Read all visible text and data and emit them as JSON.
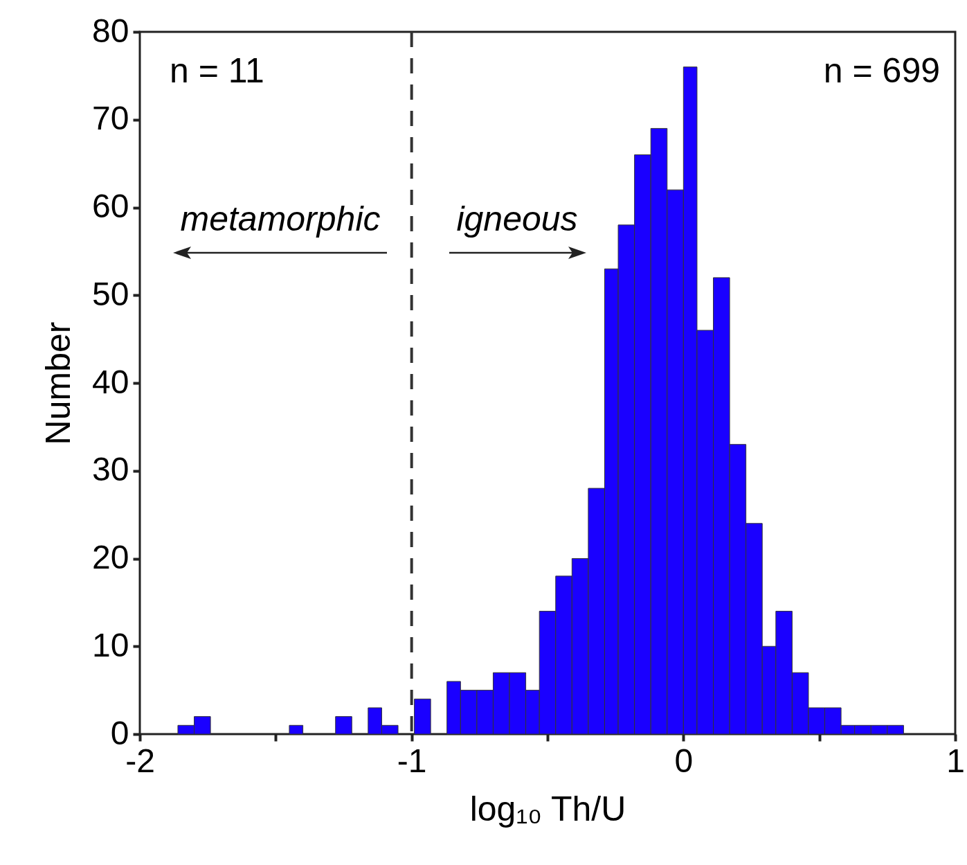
{
  "chart_data": {
    "type": "histogram",
    "xlabel": "log₁₀ Th/U",
    "ylabel": "Number",
    "bins": [
      -1.86,
      -1.8,
      -1.74,
      -1.45,
      -1.4,
      -1.28,
      -1.22,
      -1.16,
      -1.11,
      -1.05,
      -0.99,
      -0.93,
      -0.87,
      -0.82,
      -0.76,
      -0.7,
      -0.64,
      -0.58,
      -0.53,
      -0.47,
      -0.41,
      -0.35,
      -0.29,
      -0.24,
      -0.18,
      -0.12,
      -0.06,
      0,
      0.05,
      0.11,
      0.17,
      0.23,
      0.29,
      0.34,
      0.4,
      0.46,
      0.52,
      0.58,
      0.63,
      0.69,
      0.75,
      0.81
    ],
    "values": [
      1,
      2,
      0,
      1,
      0,
      2,
      0,
      3,
      1,
      0,
      4,
      0,
      6,
      5,
      5,
      7,
      7,
      5,
      14,
      18,
      20,
      28,
      53,
      58,
      66,
      69,
      62,
      76,
      46,
      52,
      33,
      24,
      10,
      14,
      7,
      3,
      3,
      1,
      1,
      1,
      1
    ],
    "color": "#1a00ff",
    "xlim": [
      -2,
      1
    ],
    "xticks": [
      -2,
      {
        "value": -1.5,
        "label": null
      },
      -1,
      {
        "value": -0.5,
        "label": null
      },
      0,
      {
        "value": 0.5,
        "label": null
      },
      1
    ],
    "ylim": [
      0,
      80
    ],
    "yticks": [
      0,
      10,
      20,
      30,
      40,
      50,
      60,
      70,
      80
    ],
    "ref_lines": [
      {
        "axis": "x",
        "value": -1,
        "line_style": "dashed",
        "color": "#333333"
      }
    ],
    "annotations": [
      "n = 11",
      "n = 699",
      "metamorphic",
      "igneous"
    ],
    "grid": false
  }
}
